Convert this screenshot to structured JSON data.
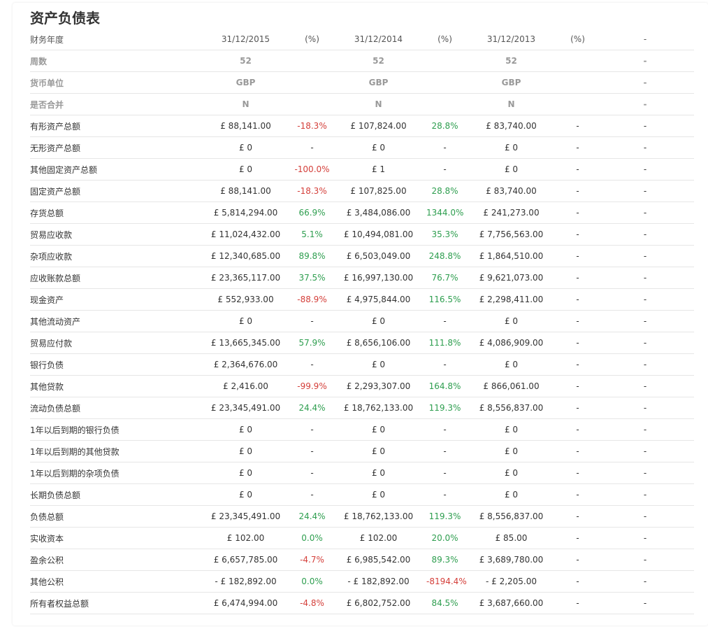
{
  "title": "资产负债表",
  "colors": {
    "positive": "#2e9e4f",
    "negative": "#d43f3a"
  },
  "header": {
    "label": "财务年度",
    "cols": [
      "31/12/2015",
      "(%)",
      "31/12/2014",
      "(%)",
      "31/12/2013",
      "(%)",
      "-"
    ]
  },
  "meta_rows": [
    {
      "label": "周数",
      "cells": [
        "52",
        "",
        "52",
        "",
        "52",
        "",
        "-"
      ]
    },
    {
      "label": "货币单位",
      "cells": [
        "GBP",
        "",
        "GBP",
        "",
        "GBP",
        "",
        "-"
      ]
    },
    {
      "label": "是否合并",
      "cells": [
        "N",
        "",
        "N",
        "",
        "N",
        "",
        "-"
      ]
    }
  ],
  "rows": [
    {
      "label": "有形资产总额",
      "v2015": "£ 88,141.00",
      "p2015": "-18.3%",
      "v2014": "£ 107,824.00",
      "p2014": "28.8%",
      "v2013": "£ 83,740.00",
      "p2013": "-",
      "extra": "-"
    },
    {
      "label": "无形资产总额",
      "v2015": "£ 0",
      "p2015": "-",
      "v2014": "£ 0",
      "p2014": "-",
      "v2013": "£ 0",
      "p2013": "-",
      "extra": "-"
    },
    {
      "label": "其他固定资产总额",
      "v2015": "£ 0",
      "p2015": "-100.0%",
      "v2014": "£ 1",
      "p2014": "-",
      "v2013": "£ 0",
      "p2013": "-",
      "extra": "-"
    },
    {
      "label": "固定资产总额",
      "v2015": "£ 88,141.00",
      "p2015": "-18.3%",
      "v2014": "£ 107,825.00",
      "p2014": "28.8%",
      "v2013": "£ 83,740.00",
      "p2013": "-",
      "extra": "-"
    },
    {
      "label": "存货总额",
      "v2015": "£ 5,814,294.00",
      "p2015": "66.9%",
      "v2014": "£ 3,484,086.00",
      "p2014": "1344.0%",
      "v2013": "£ 241,273.00",
      "p2013": "-",
      "extra": "-"
    },
    {
      "label": "贸易应收款",
      "v2015": "£ 11,024,432.00",
      "p2015": "5.1%",
      "v2014": "£ 10,494,081.00",
      "p2014": "35.3%",
      "v2013": "£ 7,756,563.00",
      "p2013": "-",
      "extra": "-"
    },
    {
      "label": "杂项应收款",
      "v2015": "£ 12,340,685.00",
      "p2015": "89.8%",
      "v2014": "£ 6,503,049.00",
      "p2014": "248.8%",
      "v2013": "£ 1,864,510.00",
      "p2013": "-",
      "extra": "-"
    },
    {
      "label": "应收账款总额",
      "v2015": "£ 23,365,117.00",
      "p2015": "37.5%",
      "v2014": "£ 16,997,130.00",
      "p2014": "76.7%",
      "v2013": "£ 9,621,073.00",
      "p2013": "-",
      "extra": "-"
    },
    {
      "label": "现金资产",
      "v2015": "£ 552,933.00",
      "p2015": "-88.9%",
      "v2014": "£ 4,975,844.00",
      "p2014": "116.5%",
      "v2013": "£ 2,298,411.00",
      "p2013": "-",
      "extra": "-"
    },
    {
      "label": "其他流动资产",
      "v2015": "£ 0",
      "p2015": "-",
      "v2014": "£ 0",
      "p2014": "-",
      "v2013": "£ 0",
      "p2013": "-",
      "extra": "-"
    },
    {
      "label": "贸易应付款",
      "v2015": "£ 13,665,345.00",
      "p2015": "57.9%",
      "v2014": "£ 8,656,106.00",
      "p2014": "111.8%",
      "v2013": "£ 4,086,909.00",
      "p2013": "-",
      "extra": "-"
    },
    {
      "label": "银行负债",
      "v2015": "£ 2,364,676.00",
      "p2015": "-",
      "v2014": "£ 0",
      "p2014": "-",
      "v2013": "£ 0",
      "p2013": "-",
      "extra": "-"
    },
    {
      "label": "其他贷款",
      "v2015": "£ 2,416.00",
      "p2015": "-99.9%",
      "v2014": "£ 2,293,307.00",
      "p2014": "164.8%",
      "v2013": "£ 866,061.00",
      "p2013": "-",
      "extra": "-"
    },
    {
      "label": "流动负债总额",
      "v2015": "£ 23,345,491.00",
      "p2015": "24.4%",
      "v2014": "£ 18,762,133.00",
      "p2014": "119.3%",
      "v2013": "£ 8,556,837.00",
      "p2013": "-",
      "extra": "-"
    },
    {
      "label": "1年以后到期的银行负债",
      "v2015": "£ 0",
      "p2015": "-",
      "v2014": "£ 0",
      "p2014": "-",
      "v2013": "£ 0",
      "p2013": "-",
      "extra": "-"
    },
    {
      "label": "1年以后到期的其他贷款",
      "v2015": "£ 0",
      "p2015": "-",
      "v2014": "£ 0",
      "p2014": "-",
      "v2013": "£ 0",
      "p2013": "-",
      "extra": "-"
    },
    {
      "label": "1年以后到期的杂项负债",
      "v2015": "£ 0",
      "p2015": "-",
      "v2014": "£ 0",
      "p2014": "-",
      "v2013": "£ 0",
      "p2013": "-",
      "extra": "-"
    },
    {
      "label": "长期负债总额",
      "v2015": "£ 0",
      "p2015": "-",
      "v2014": "£ 0",
      "p2014": "-",
      "v2013": "£ 0",
      "p2013": "-",
      "extra": "-"
    },
    {
      "label": "负债总额",
      "v2015": "£ 23,345,491.00",
      "p2015": "24.4%",
      "v2014": "£ 18,762,133.00",
      "p2014": "119.3%",
      "v2013": "£ 8,556,837.00",
      "p2013": "-",
      "extra": "-"
    },
    {
      "label": "实收资本",
      "v2015": "£ 102.00",
      "p2015": "0.0%",
      "v2014": "£ 102.00",
      "p2014": "20.0%",
      "v2013": "£ 85.00",
      "p2013": "-",
      "extra": "-"
    },
    {
      "label": "盈余公积",
      "v2015": "£ 6,657,785.00",
      "p2015": "-4.7%",
      "v2014": "£ 6,985,542.00",
      "p2014": "89.3%",
      "v2013": "£ 3,689,780.00",
      "p2013": "-",
      "extra": "-"
    },
    {
      "label": "其他公积",
      "v2015": "- £ 182,892.00",
      "p2015": "0.0%",
      "v2014": "- £ 182,892.00",
      "p2014": "-8194.4%",
      "v2013": "- £ 2,205.00",
      "p2013": "-",
      "extra": "-"
    },
    {
      "label": "所有者权益总额",
      "v2015": "£ 6,474,994.00",
      "p2015": "-4.8%",
      "v2014": "£ 6,802,752.00",
      "p2014": "84.5%",
      "v2013": "£ 3,687,660.00",
      "p2013": "-",
      "extra": "-"
    }
  ]
}
